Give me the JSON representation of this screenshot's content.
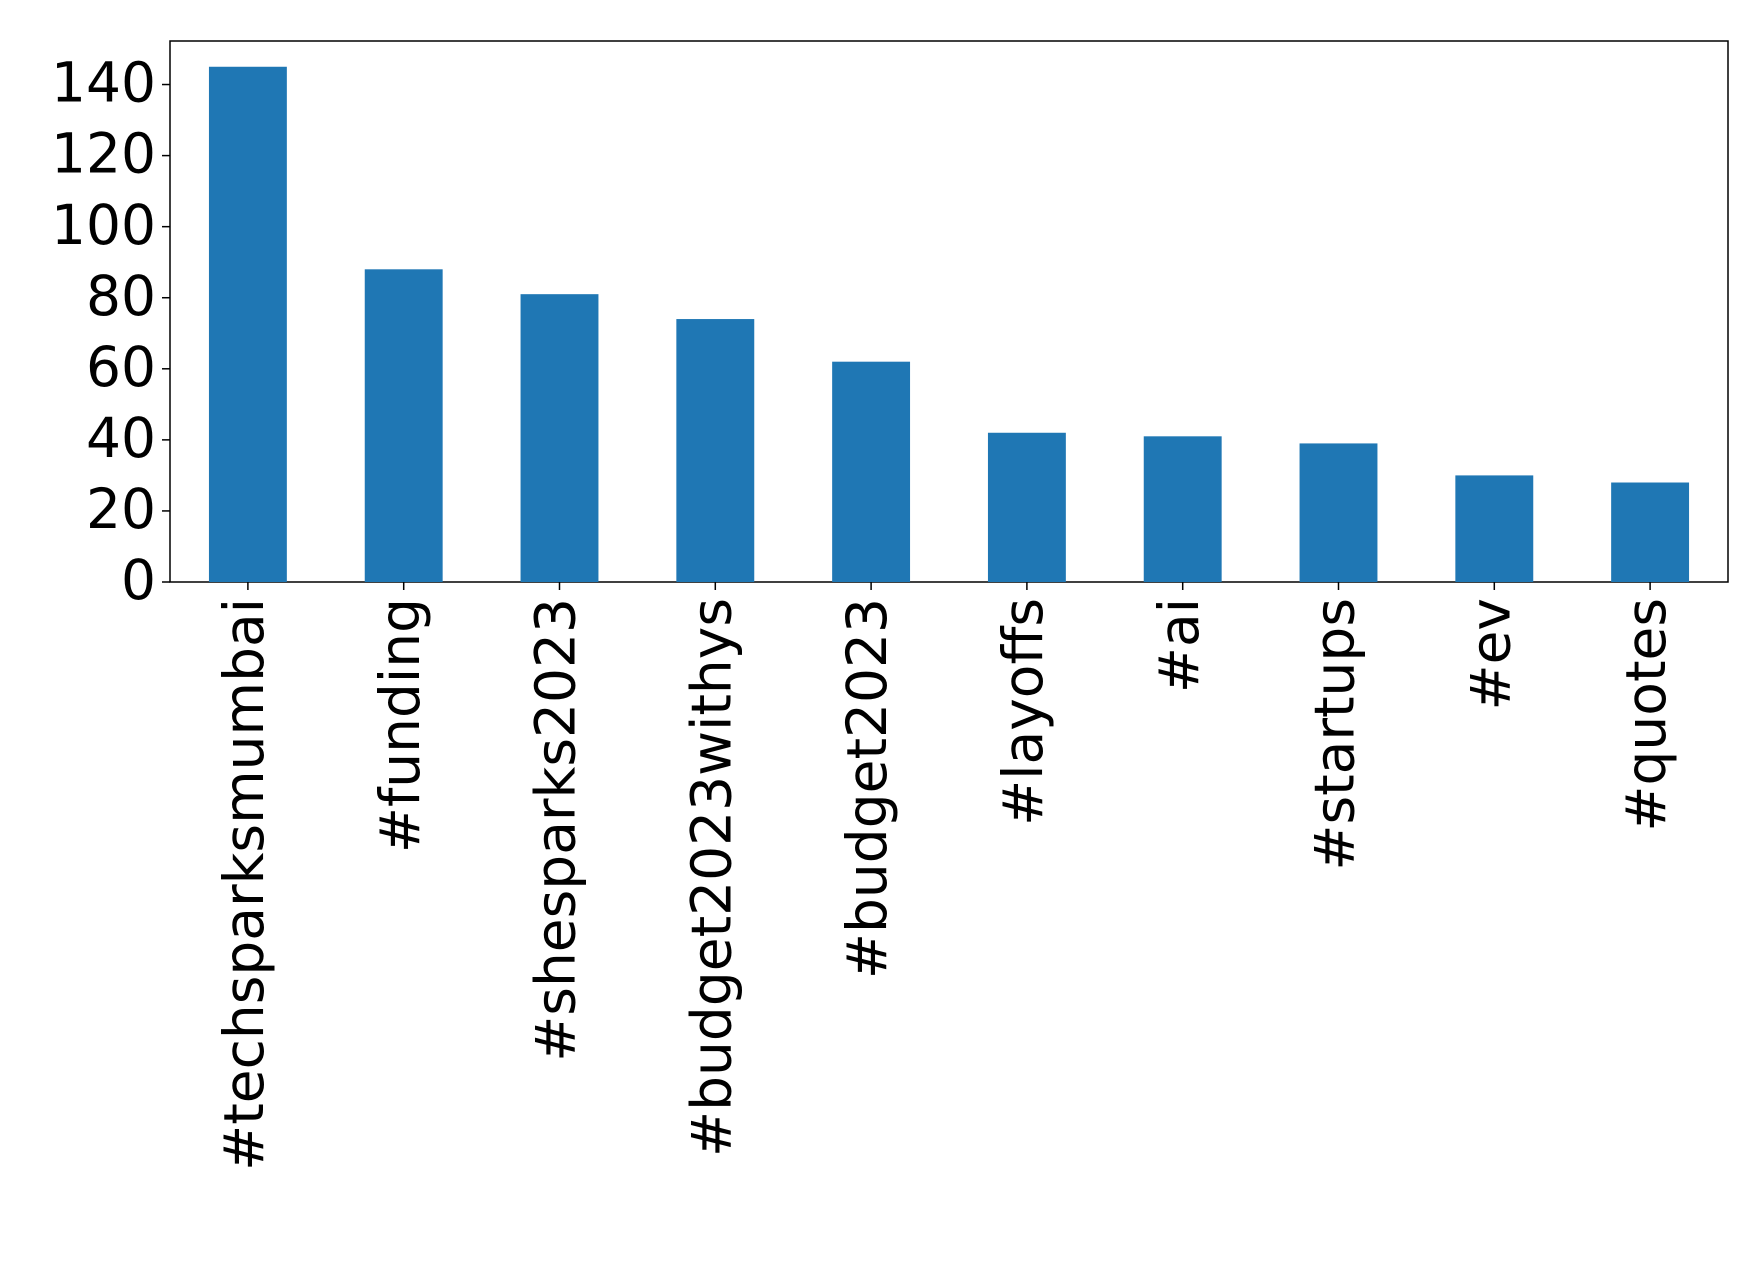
{
  "chart_data": {
    "type": "bar",
    "categories": [
      "#techsparksmumbai",
      "#funding",
      "#shesparks2023",
      "#budget2023withys",
      "#budget2023",
      "#layoffs",
      "#ai",
      "#startups",
      "#ev",
      "#quotes"
    ],
    "values": [
      145,
      88,
      81,
      74,
      62,
      42,
      41,
      39,
      30,
      28
    ],
    "color": "#1f77b4",
    "ylim": [
      0,
      152.25
    ],
    "yticks": [
      0,
      20,
      40,
      60,
      80,
      100,
      120,
      140
    ],
    "grid": false
  }
}
